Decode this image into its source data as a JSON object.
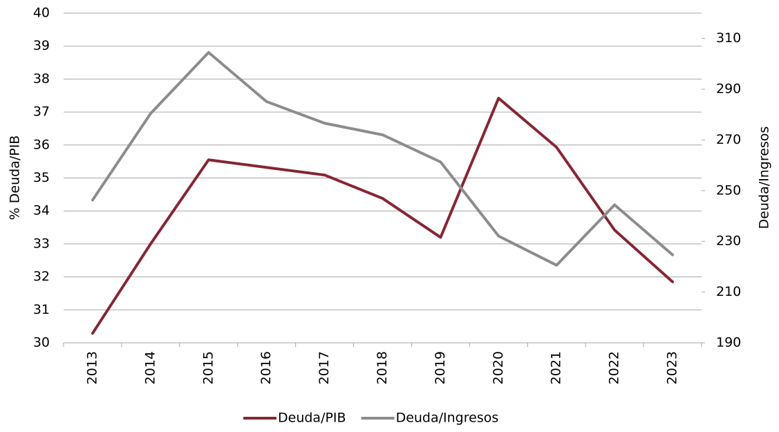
{
  "chart_data": {
    "type": "line",
    "categories": [
      "2013",
      "2014",
      "2015",
      "2016",
      "2017",
      "2018",
      "2019",
      "2020",
      "2021",
      "2022",
      "2023"
    ],
    "series": [
      {
        "name": "Deuda/PIB",
        "color": "#862633",
        "values": [
          30.29,
          33.0,
          35.55,
          35.32,
          35.09,
          34.38,
          33.2,
          37.42,
          35.93,
          33.42,
          31.85
        ]
      },
      {
        "name": "Deuda/Ingresos",
        "color": "#8c8c8c",
        "axis": "y2",
        "values": [
          246.3,
          280.4,
          304.5,
          285.1,
          276.6,
          272.0,
          261.3,
          232.1,
          220.6,
          244.4,
          224.7
        ]
      }
    ],
    "ylabel": "% Deuda/PIB",
    "y2label": "Deuda/Ingresos",
    "ylim": [
      30,
      40
    ],
    "yticks": [
      30,
      31,
      32,
      33,
      34,
      35,
      36,
      37,
      38,
      39,
      40
    ],
    "y2lim": [
      190,
      320
    ],
    "y2ticks": [
      190,
      210,
      230,
      250,
      270,
      290,
      310
    ],
    "grid": true,
    "legend": "bottom"
  }
}
